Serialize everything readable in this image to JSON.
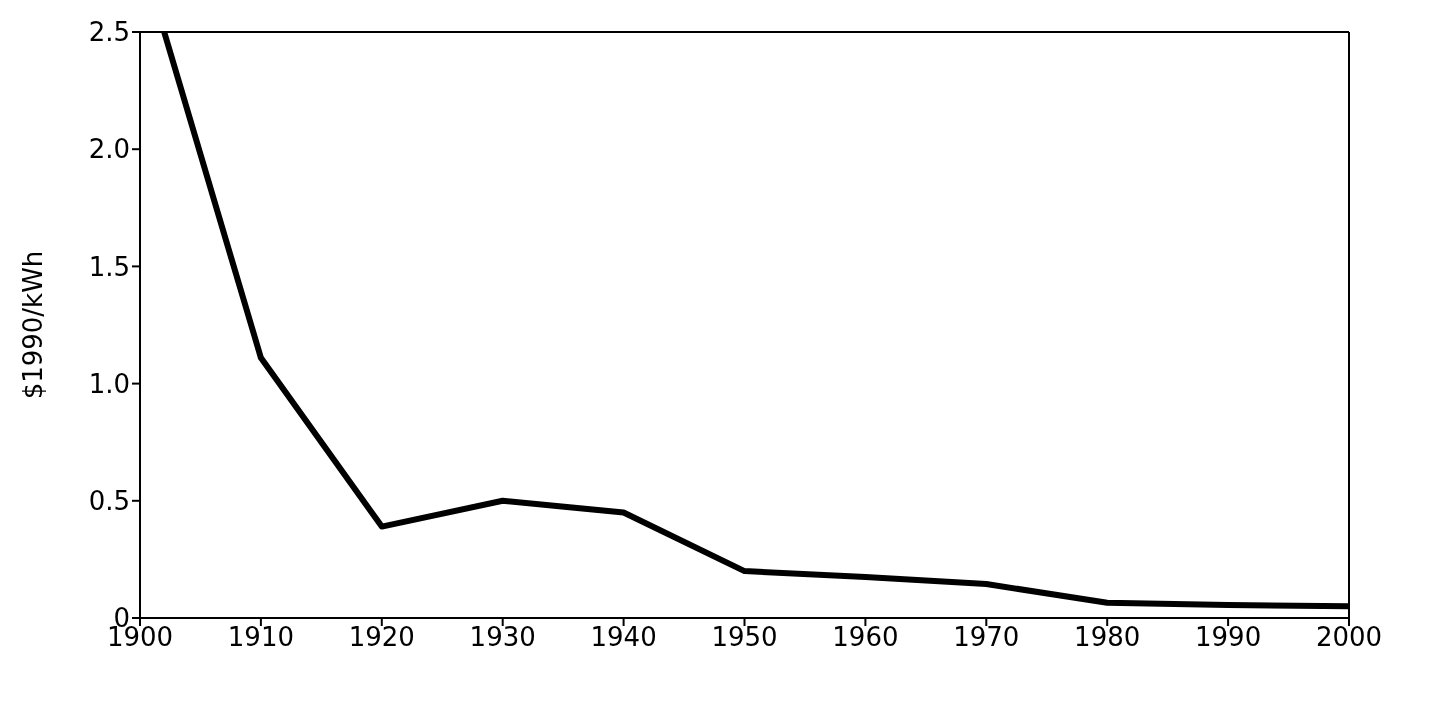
{
  "chart_data": {
    "type": "line",
    "ylabel": "$1990/kWh",
    "x": [
      1902,
      1910,
      1920,
      1930,
      1940,
      1950,
      1960,
      1970,
      1980,
      1990,
      2000
    ],
    "series": [
      {
        "color": "#000000",
        "values": [
          2.5,
          1.11,
          0.39,
          0.5,
          0.45,
          0.2,
          0.175,
          0.145,
          0.065,
          0.055,
          0.05
        ]
      }
    ],
    "xlim": [
      1900,
      2000
    ],
    "xticks": [
      1900,
      1910,
      1920,
      1930,
      1940,
      1950,
      1960,
      1970,
      1980,
      1990,
      2000
    ],
    "ylim": [
      0,
      2.5
    ],
    "yticks": [
      0,
      0.5,
      {
        "value": 1,
        "label": "1.0"
      },
      1.5,
      {
        "value": 2,
        "label": "2.0"
      },
      2.5
    ],
    "grid": false,
    "legend": false,
    "marker": "none",
    "line_style": "solid"
  }
}
